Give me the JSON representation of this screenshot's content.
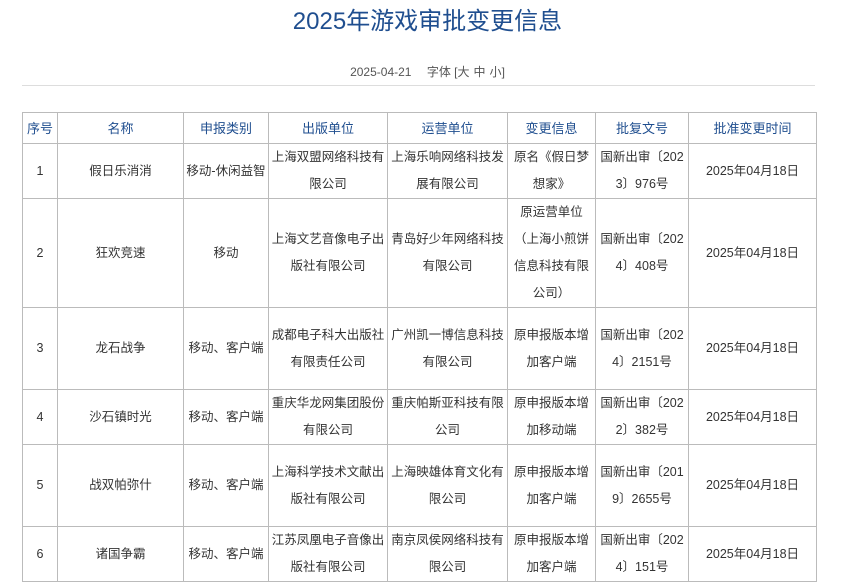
{
  "title": "2025年游戏审批变更信息",
  "date": "2025-04-21",
  "font_label": "字体",
  "font_sizes": {
    "open": "[",
    "large": "大",
    "medium": "中",
    "small": "小",
    "close": "]"
  },
  "columns": [
    "序号",
    "名称",
    "申报类别",
    "出版单位",
    "运营单位",
    "变更信息",
    "批复文号",
    "批准变更时间"
  ],
  "rows": [
    [
      "1",
      "假日乐消消",
      "移动-休闲益智",
      "上海双盟网络科技有限公司",
      "上海乐响网络科技发展有限公司",
      "原名《假日梦想家》",
      "国新出审〔2023〕976号",
      "2025年04月18日"
    ],
    [
      "2",
      "狂欢竞速",
      "移动",
      "上海文艺音像电子出版社有限公司",
      "青岛好少年网络科技有限公司",
      "原运营单位（上海小煎饼信息科技有限公司）",
      "国新出审〔2024〕408号",
      "2025年04月18日"
    ],
    [
      "3",
      "龙石战争",
      "移动、客户端",
      "成都电子科大出版社有限责任公司",
      "广州凯一博信息科技有限公司",
      "原申报版本增加客户端",
      "国新出审〔2024〕2151号",
      "2025年04月18日"
    ],
    [
      "4",
      "沙石镇时光",
      "移动、客户端",
      "重庆华龙网集团股份有限公司",
      "重庆帕斯亚科技有限公司",
      "原申报版本增加移动端",
      "国新出审〔2022〕382号",
      "2025年04月18日"
    ],
    [
      "5",
      "战双帕弥什",
      "移动、客户端",
      "上海科学技术文献出版社有限公司",
      "上海映雄体育文化有限公司",
      "原申报版本增加客户端",
      "国新出审〔2019〕2655号",
      "2025年04月18日"
    ],
    [
      "6",
      "诸国争霸",
      "移动、客户端",
      "江苏凤凰电子音像出版社有限公司",
      "南京凤侯网络科技有限公司",
      "原申报版本增加客户端",
      "国新出审〔2024〕151号",
      "2025年04月18日"
    ]
  ]
}
